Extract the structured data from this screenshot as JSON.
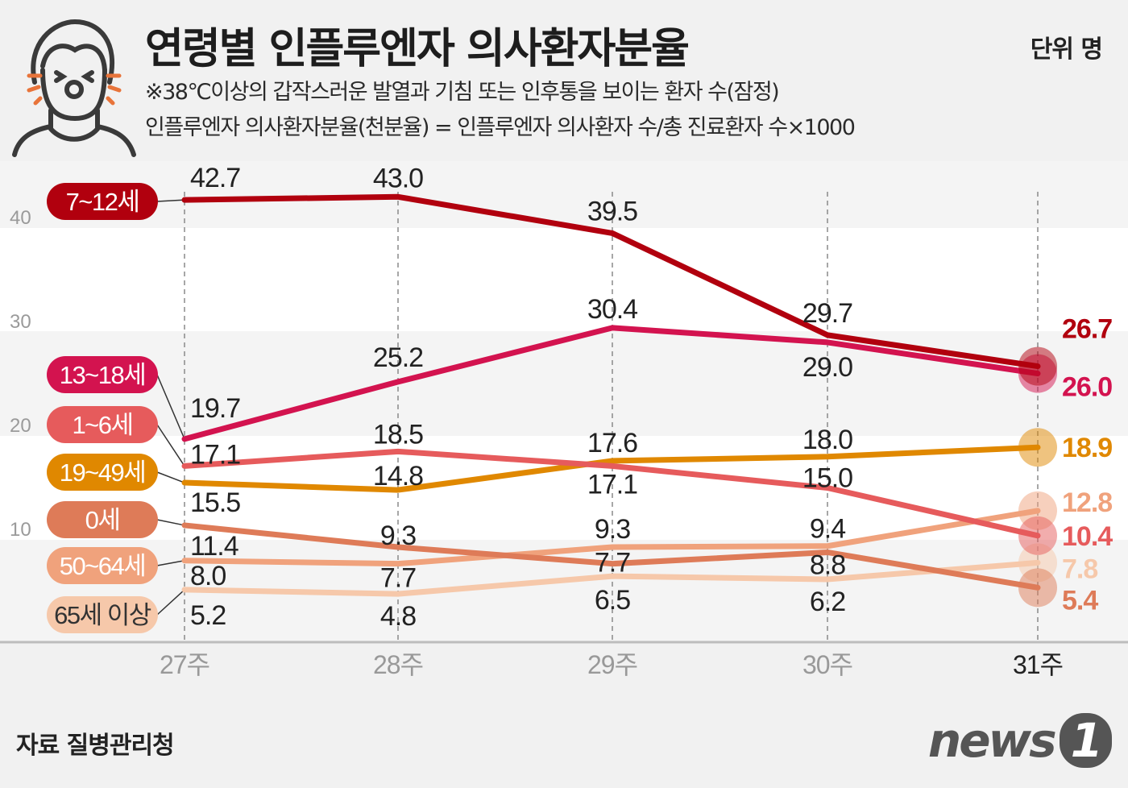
{
  "header": {
    "title": "연령별 인플루엔자 의사환자분율",
    "unit": "단위 명",
    "note1": "※38℃이상의 갑작스러운 발열과 기침 또는 인후통을 보이는 환자 수(잠정)",
    "note2": "인플루엔자 의사환자분율(천분율) = 인플루엔자 의사환자 수/총 진료환자 수×1000"
  },
  "footer": {
    "source": "자료 질병관리청",
    "logo": "news1"
  },
  "chart_data": {
    "type": "line",
    "categories": [
      "27주",
      "28주",
      "29주",
      "30주",
      "31주"
    ],
    "y_ticks": [
      10,
      20,
      30,
      40
    ],
    "ylim": [
      0,
      45
    ],
    "grid": "alternating horizontal bands",
    "legend": "left labels",
    "series": [
      {
        "name": "7~12세",
        "color": "#b1000e",
        "values": [
          42.7,
          43.0,
          39.5,
          29.7,
          26.7
        ]
      },
      {
        "name": "13~18세",
        "color": "#d3134f",
        "values": [
          19.7,
          25.2,
          30.4,
          29.0,
          26.0
        ]
      },
      {
        "name": "1~6세",
        "color": "#e65b5c",
        "values": [
          17.1,
          18.5,
          17.1,
          15.0,
          10.4
        ]
      },
      {
        "name": "19~49세",
        "color": "#e08800",
        "values": [
          15.5,
          14.8,
          17.6,
          18.0,
          18.9
        ]
      },
      {
        "name": "0세",
        "color": "#de7b58",
        "values": [
          11.4,
          9.3,
          7.7,
          8.8,
          5.4
        ]
      },
      {
        "name": "50~64세",
        "color": "#f0a27c",
        "values": [
          8.0,
          7.7,
          9.3,
          9.4,
          12.8
        ]
      },
      {
        "name": "65세 이상",
        "color": "#f6c8aa",
        "values": [
          5.2,
          4.8,
          6.5,
          6.2,
          7.8
        ]
      }
    ]
  }
}
